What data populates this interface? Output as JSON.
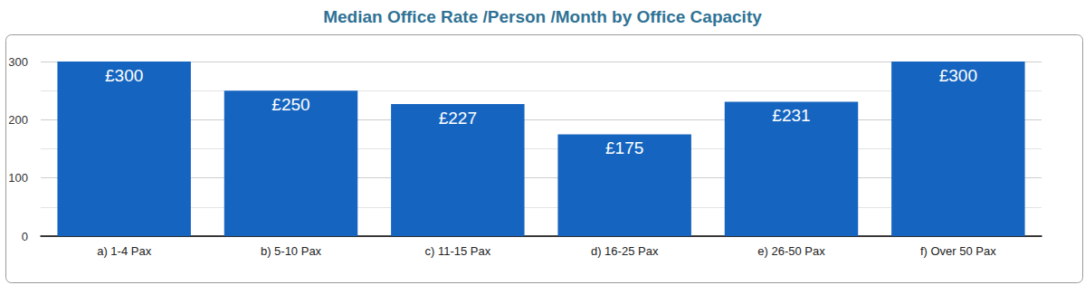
{
  "chart_data": {
    "type": "bar",
    "title": "Median Office Rate /Person /Month by Office Capacity",
    "categories": [
      "a) 1-4 Pax",
      "b) 5-10 Pax",
      "c) 11-15 Pax",
      "d) 16-25 Pax",
      "e) 26-50 Pax",
      "f) Over 50 Pax"
    ],
    "values": [
      300,
      250,
      227,
      175,
      231,
      300
    ],
    "value_labels": [
      "£300",
      "£250",
      "£227",
      "£175",
      "£231",
      "£300"
    ],
    "color": "#1565c0",
    "ylim": [
      0,
      300
    ],
    "yticks": [
      0,
      100,
      200,
      300
    ],
    "grid": true,
    "data_labels": true
  }
}
